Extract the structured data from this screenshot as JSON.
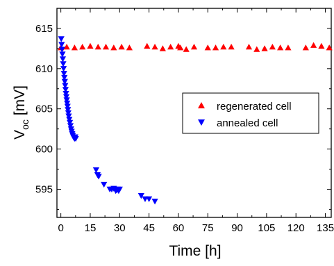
{
  "chart_data": {
    "type": "scatter",
    "title": "",
    "xlabel": "Time [h]",
    "ylabel": {
      "main": "V",
      "sub": "oc",
      "unit": " [mV]"
    },
    "xlim": [
      -2,
      138
    ],
    "ylim": [
      591.5,
      617.5
    ],
    "xticks": [
      0,
      15,
      30,
      45,
      60,
      75,
      90,
      105,
      120,
      135
    ],
    "yticks": [
      595,
      600,
      605,
      610,
      615
    ],
    "grid": false,
    "legend_position": "center-right",
    "series": [
      {
        "name": "regenerated cell",
        "marker": "triangle-up",
        "color": "#ff0000",
        "x": [
          0,
          3,
          7,
          11,
          15,
          19,
          23,
          27,
          31,
          35,
          44,
          48,
          52,
          56,
          60,
          61,
          64,
          68,
          75,
          79,
          83,
          87,
          96,
          100,
          104,
          108,
          112,
          116,
          125,
          129,
          133,
          137
        ],
        "y": [
          612.6,
          612.7,
          612.6,
          612.7,
          612.8,
          612.7,
          612.7,
          612.6,
          612.7,
          612.6,
          612.8,
          612.7,
          612.5,
          612.7,
          612.8,
          612.6,
          612.4,
          612.7,
          612.6,
          612.6,
          612.7,
          612.7,
          612.7,
          612.4,
          612.5,
          612.7,
          612.6,
          612.6,
          612.6,
          612.9,
          612.8,
          612.6
        ]
      },
      {
        "name": "annealed cell",
        "marker": "triangle-down",
        "color": "#0000ff",
        "x": [
          0.2,
          0.4,
          0.6,
          0.8,
          1.0,
          1.2,
          1.4,
          1.6,
          1.8,
          2.0,
          2.2,
          2.4,
          2.6,
          2.8,
          3.0,
          3.2,
          3.4,
          3.6,
          3.8,
          4.0,
          4.3,
          4.6,
          4.9,
          5.2,
          5.5,
          5.8,
          6.1,
          6.4,
          6.7,
          7.0,
          7.3,
          7.6,
          18,
          18.7,
          19.3,
          22,
          25,
          26,
          27,
          28,
          28.5,
          29,
          29.5,
          30,
          41,
          43,
          45,
          48
        ],
        "y": [
          613.7,
          613.0,
          612.4,
          611.8,
          611.2,
          610.6,
          610.0,
          609.4,
          608.9,
          608.4,
          607.9,
          607.4,
          606.9,
          606.5,
          606.1,
          605.7,
          605.3,
          604.9,
          604.5,
          604.1,
          603.7,
          603.3,
          602.9,
          602.5,
          602.2,
          601.9,
          601.7,
          601.5,
          601.4,
          601.3,
          601.5,
          601.3,
          597.4,
          596.8,
          596.6,
          595.6,
          595.0,
          595.0,
          595.1,
          594.8,
          594.9,
          595.0,
          594.8,
          595.0,
          594.2,
          593.8,
          593.8,
          593.5
        ]
      }
    ]
  }
}
